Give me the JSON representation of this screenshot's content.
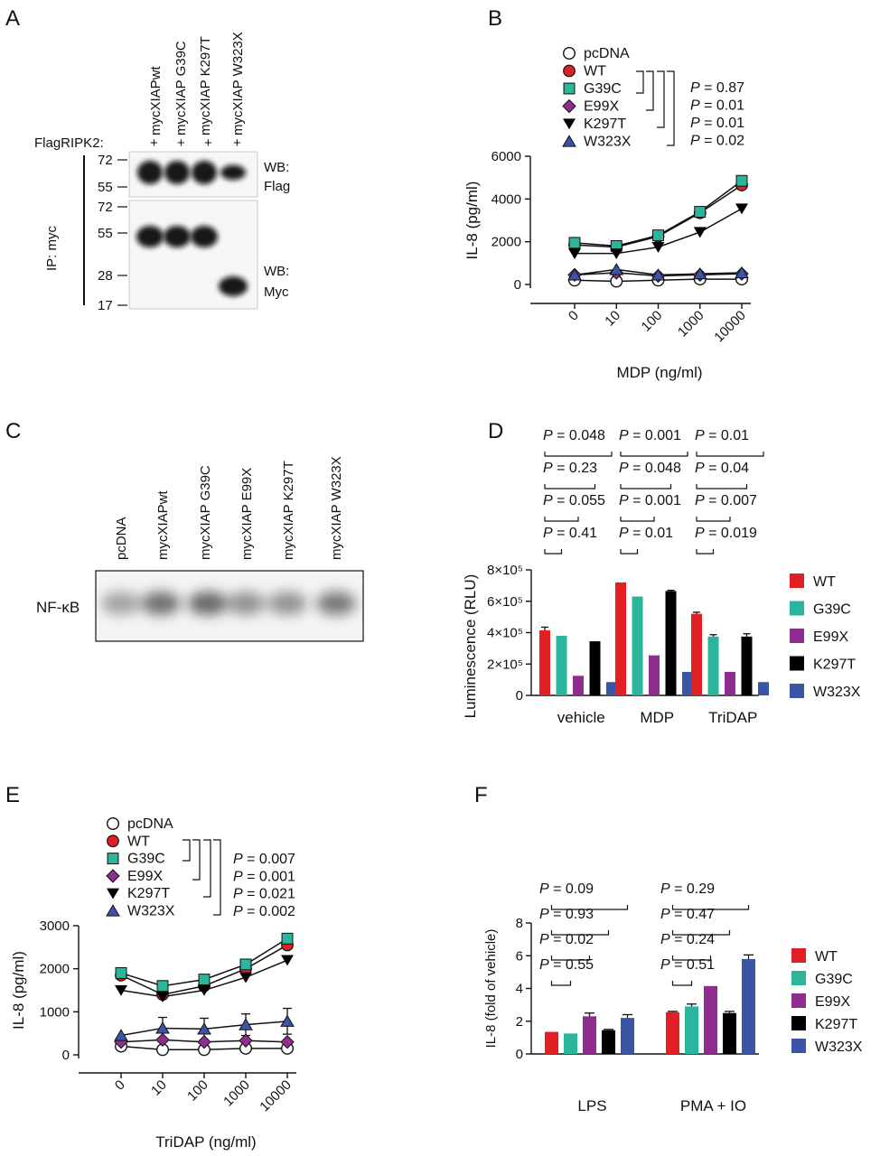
{
  "colors": {
    "pcDNA": "#ffffff",
    "WT": "#e31f26",
    "G39C": "#2bb59a",
    "E99X": "#8e2d8f",
    "K297T": "#000000",
    "W323X": "#3a55a3"
  },
  "panels": {
    "A": {
      "letter": "A",
      "lanes": [
        "mycXIAPwt",
        "mycXIAP G39C",
        "mycXIAP K297T",
        "mycXIAP W323X"
      ],
      "flag_label": "FlagRIPK2:",
      "plus_signs": [
        "+",
        "+",
        "+",
        "+"
      ],
      "ip_label": "IP: myc",
      "top_markers": [
        "72",
        "55"
      ],
      "bottom_markers": [
        "72",
        "55",
        "28",
        "17"
      ],
      "wb_top": [
        "WB:",
        "Flag"
      ],
      "wb_bottom": [
        "WB:",
        "Myc"
      ],
      "band_intensity": {
        "flag": [
          1,
          1,
          1,
          0.6
        ],
        "myc": [
          1,
          1,
          1,
          1
        ]
      }
    },
    "B": {
      "letter": "B",
      "legend": [
        "pcDNA",
        "WT",
        "G39C",
        "E99X",
        "K297T",
        "W323X"
      ],
      "pvalues": [
        "0.87",
        "0.01",
        "0.01",
        "0.02"
      ],
      "p_label": "P",
      "eq": " = "
    },
    "C": {
      "letter": "C",
      "lanes": [
        "pcDNA",
        "mycXIAPwt",
        "mycXIAP G39C",
        "mycXIAP E99X",
        "mycXIAP K297T",
        "mycXIAP W323X"
      ],
      "row_label": "NF-κB",
      "band_intensity": [
        0.45,
        0.75,
        0.8,
        0.55,
        0.55,
        0.7
      ]
    },
    "D": {
      "letter": "D",
      "legend": [
        "WT",
        "G39C",
        "E99X",
        "K297T",
        "W323X"
      ],
      "pvalues": {
        "vehicle": [
          "0.048",
          "0.23",
          "0.055",
          "0.41"
        ],
        "MDP": [
          "0.001",
          "0.048",
          "0.001",
          "0.01"
        ],
        "TriDAP": [
          "0.01",
          "0.04",
          "0.007",
          "0.019"
        ]
      }
    },
    "E": {
      "letter": "E",
      "legend": [
        "pcDNA",
        "WT",
        "G39C",
        "E99X",
        "K297T",
        "W323X"
      ],
      "pvalues": [
        "0.007",
        "0.001",
        "0.021",
        "0.002"
      ]
    },
    "F": {
      "letter": "F",
      "legend": [
        "WT",
        "G39C",
        "E99X",
        "K297T",
        "W323X"
      ],
      "pvalues": {
        "LPS": [
          "0.09",
          "0.93",
          "0.02",
          "0.55"
        ],
        "PMA + IO": [
          "0.29",
          "0.47",
          "0.24",
          "0.51"
        ]
      }
    }
  },
  "chart_data": [
    {
      "id": "B",
      "type": "line",
      "x": [
        "0",
        "10",
        "100",
        "1000",
        "10000"
      ],
      "xlabel": "MDP (ng/ml)",
      "ylabel": "IL-8 (pg/ml)",
      "yticks": [
        "0",
        "2000",
        "4000",
        "6000"
      ],
      "ylim": [
        0,
        6000
      ],
      "series": [
        {
          "name": "pcDNA",
          "values": [
            200,
            150,
            200,
            250,
            250
          ]
        },
        {
          "name": "WT",
          "values": [
            1850,
            1750,
            2250,
            3350,
            4650
          ]
        },
        {
          "name": "G39C",
          "values": [
            1950,
            1800,
            2300,
            3400,
            4850
          ]
        },
        {
          "name": "E99X",
          "values": [
            450,
            550,
            400,
            450,
            500
          ]
        },
        {
          "name": "K297T",
          "values": [
            1450,
            1450,
            1750,
            2450,
            3550
          ]
        },
        {
          "name": "W323X",
          "values": [
            450,
            700,
            450,
            500,
            550
          ]
        }
      ]
    },
    {
      "id": "D",
      "type": "bar",
      "categories": [
        "vehicle",
        "MDP",
        "TriDAP"
      ],
      "ylabel": "Luminescence (RLU)",
      "yticks": [
        "0",
        "2×10⁵",
        "4×10⁵",
        "6×10⁵",
        "8×10⁵"
      ],
      "ylim": [
        0,
        800000
      ],
      "series": [
        {
          "name": "WT",
          "values": [
            415000,
            720000,
            520000
          ],
          "errors": [
            20000,
            0,
            10000
          ]
        },
        {
          "name": "G39C",
          "values": [
            380000,
            630000,
            375000
          ],
          "errors": [
            0,
            0,
            12000
          ]
        },
        {
          "name": "E99X",
          "values": [
            125000,
            255000,
            150000
          ],
          "errors": [
            0,
            0,
            0
          ]
        },
        {
          "name": "K297T",
          "values": [
            345000,
            665000,
            375000
          ],
          "errors": [
            0,
            5000,
            18000
          ]
        },
        {
          "name": "W323X",
          "values": [
            85000,
            150000,
            85000
          ],
          "errors": [
            0,
            0,
            0
          ]
        }
      ]
    },
    {
      "id": "E",
      "type": "line",
      "x": [
        "0",
        "10",
        "100",
        "1000",
        "10000"
      ],
      "xlabel": "TriDAP (ng/ml)",
      "ylabel": "IL-8 (pg/ml)",
      "yticks": [
        "0",
        "1000",
        "2000",
        "3000"
      ],
      "ylim": [
        0,
        3000
      ],
      "series": [
        {
          "name": "pcDNA",
          "values": [
            200,
            120,
            120,
            150,
            150
          ],
          "errors": [
            0,
            0,
            0,
            0,
            0
          ]
        },
        {
          "name": "WT",
          "values": [
            1850,
            1400,
            1600,
            2000,
            2550
          ],
          "errors": [
            0,
            0,
            0,
            0,
            0
          ]
        },
        {
          "name": "G39C",
          "values": [
            1900,
            1600,
            1750,
            2100,
            2700
          ],
          "errors": [
            0,
            0,
            0,
            0,
            0
          ]
        },
        {
          "name": "E99X",
          "values": [
            300,
            350,
            300,
            330,
            300
          ],
          "errors": [
            0,
            0,
            0,
            0,
            0
          ]
        },
        {
          "name": "K297T",
          "values": [
            1500,
            1350,
            1500,
            1800,
            2200
          ],
          "errors": [
            0,
            0,
            0,
            0,
            0
          ]
        },
        {
          "name": "W323X",
          "values": [
            450,
            620,
            600,
            700,
            780
          ],
          "errors": [
            0,
            250,
            250,
            250,
            300
          ]
        }
      ]
    },
    {
      "id": "F",
      "type": "bar",
      "categories": [
        "LPS",
        "PMA + IO"
      ],
      "ylabel": "IL-8 (fold of vehicle)",
      "yticks": [
        "0",
        "2",
        "4",
        "6",
        "8"
      ],
      "ylim": [
        0,
        8
      ],
      "series": [
        {
          "name": "WT",
          "values": [
            1.35,
            2.55
          ],
          "errors": [
            0,
            0.05
          ]
        },
        {
          "name": "G39C",
          "values": [
            1.25,
            2.9
          ],
          "errors": [
            0,
            0.15
          ]
        },
        {
          "name": "E99X",
          "values": [
            2.3,
            4.15
          ],
          "errors": [
            0.2,
            0
          ]
        },
        {
          "name": "K297T",
          "values": [
            1.45,
            2.5
          ],
          "errors": [
            0.05,
            0.1
          ]
        },
        {
          "name": "W323X",
          "values": [
            2.2,
            5.8
          ],
          "errors": [
            0.2,
            0.25
          ]
        }
      ]
    }
  ]
}
